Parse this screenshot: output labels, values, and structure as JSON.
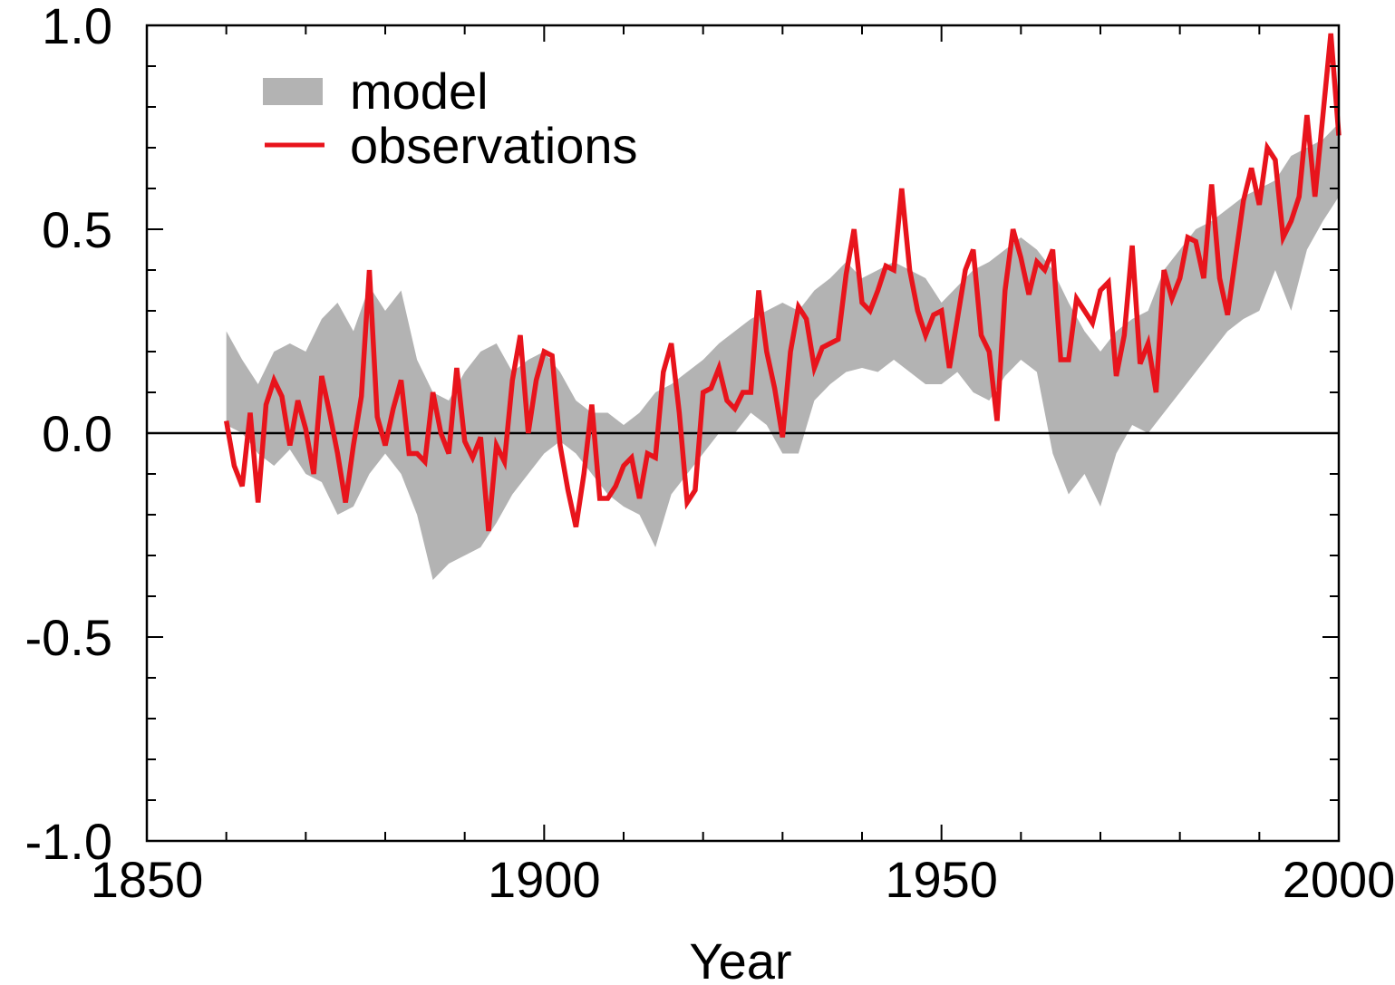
{
  "chart_data": {
    "type": "line",
    "title": "",
    "xlabel": "Year",
    "ylabel": "",
    "xlim": [
      1850,
      2000
    ],
    "ylim": [
      -1.0,
      1.0
    ],
    "x_ticks": [
      1850,
      1900,
      1950,
      2000
    ],
    "x_tick_labels": [
      "1850",
      "1900",
      "1950",
      "2000"
    ],
    "y_ticks": [
      -1.0,
      -0.5,
      0.0,
      0.5,
      1.0
    ],
    "y_tick_labels": [
      "-1.0",
      "-0.5",
      "0.0",
      "0.5",
      "1.0"
    ],
    "zero_line": true,
    "grid": false,
    "legend_position": "top-left",
    "legend": [
      "model",
      "observations"
    ],
    "colors": {
      "model": "#b3b3b3",
      "observations": "#e8141c",
      "axes": "#000000"
    },
    "series": [
      {
        "name": "model",
        "kind": "band",
        "x": [
          1860,
          1862,
          1864,
          1866,
          1868,
          1870,
          1872,
          1874,
          1876,
          1878,
          1880,
          1882,
          1884,
          1886,
          1888,
          1890,
          1892,
          1894,
          1896,
          1898,
          1900,
          1902,
          1904,
          1906,
          1908,
          1910,
          1912,
          1914,
          1916,
          1918,
          1920,
          1922,
          1924,
          1926,
          1928,
          1930,
          1932,
          1934,
          1936,
          1938,
          1940,
          1942,
          1944,
          1946,
          1948,
          1950,
          1952,
          1954,
          1956,
          1958,
          1960,
          1962,
          1964,
          1966,
          1968,
          1970,
          1972,
          1974,
          1976,
          1978,
          1980,
          1982,
          1984,
          1986,
          1988,
          1990,
          1992,
          1994,
          1996,
          1998,
          2000
        ],
        "lower": [
          0.02,
          0.0,
          -0.05,
          -0.08,
          -0.04,
          -0.1,
          -0.12,
          -0.2,
          -0.18,
          -0.1,
          -0.05,
          -0.1,
          -0.2,
          -0.36,
          -0.32,
          -0.3,
          -0.28,
          -0.22,
          -0.15,
          -0.1,
          -0.05,
          -0.02,
          -0.05,
          -0.1,
          -0.15,
          -0.18,
          -0.2,
          -0.28,
          -0.15,
          -0.1,
          -0.05,
          0.0,
          0.0,
          0.05,
          0.02,
          -0.05,
          -0.05,
          0.08,
          0.12,
          0.15,
          0.16,
          0.15,
          0.18,
          0.15,
          0.12,
          0.12,
          0.15,
          0.1,
          0.08,
          0.14,
          0.18,
          0.15,
          -0.05,
          -0.15,
          -0.1,
          -0.18,
          -0.05,
          0.02,
          0.0,
          0.05,
          0.1,
          0.15,
          0.2,
          0.25,
          0.28,
          0.3,
          0.4,
          0.3,
          0.45,
          0.52,
          0.58
        ],
        "upper": [
          0.25,
          0.18,
          0.12,
          0.2,
          0.22,
          0.2,
          0.28,
          0.32,
          0.25,
          0.36,
          0.3,
          0.35,
          0.18,
          0.1,
          0.08,
          0.15,
          0.2,
          0.22,
          0.15,
          0.18,
          0.2,
          0.15,
          0.08,
          0.05,
          0.05,
          0.02,
          0.05,
          0.1,
          0.12,
          0.15,
          0.18,
          0.22,
          0.25,
          0.28,
          0.3,
          0.32,
          0.3,
          0.35,
          0.38,
          0.42,
          0.38,
          0.4,
          0.42,
          0.4,
          0.38,
          0.32,
          0.36,
          0.4,
          0.42,
          0.45,
          0.48,
          0.45,
          0.4,
          0.32,
          0.25,
          0.2,
          0.25,
          0.28,
          0.3,
          0.4,
          0.45,
          0.5,
          0.52,
          0.55,
          0.58,
          0.6,
          0.62,
          0.68,
          0.7,
          0.72,
          0.76
        ]
      },
      {
        "name": "observations",
        "kind": "line",
        "x": [
          1860,
          1861,
          1862,
          1863,
          1864,
          1865,
          1866,
          1867,
          1868,
          1869,
          1870,
          1871,
          1872,
          1873,
          1874,
          1875,
          1876,
          1877,
          1878,
          1879,
          1880,
          1881,
          1882,
          1883,
          1884,
          1885,
          1886,
          1887,
          1888,
          1889,
          1890,
          1891,
          1892,
          1893,
          1894,
          1895,
          1896,
          1897,
          1898,
          1899,
          1900,
          1901,
          1902,
          1903,
          1904,
          1905,
          1906,
          1907,
          1908,
          1909,
          1910,
          1911,
          1912,
          1913,
          1914,
          1915,
          1916,
          1917,
          1918,
          1919,
          1920,
          1921,
          1922,
          1923,
          1924,
          1925,
          1926,
          1927,
          1928,
          1929,
          1930,
          1931,
          1932,
          1933,
          1934,
          1935,
          1936,
          1937,
          1938,
          1939,
          1940,
          1941,
          1942,
          1943,
          1944,
          1945,
          1946,
          1947,
          1948,
          1949,
          1950,
          1951,
          1952,
          1953,
          1954,
          1955,
          1956,
          1957,
          1958,
          1959,
          1960,
          1961,
          1962,
          1963,
          1964,
          1965,
          1966,
          1967,
          1968,
          1969,
          1970,
          1971,
          1972,
          1973,
          1974,
          1975,
          1976,
          1977,
          1978,
          1979,
          1980,
          1981,
          1982,
          1983,
          1984,
          1985,
          1986,
          1987,
          1988,
          1989,
          1990,
          1991,
          1992,
          1993,
          1994,
          1995,
          1996,
          1997,
          1998,
          1999,
          2000
        ],
        "y": [
          0.03,
          -0.08,
          -0.13,
          0.05,
          -0.17,
          0.07,
          0.13,
          0.09,
          -0.03,
          0.08,
          0.01,
          -0.1,
          0.14,
          0.05,
          -0.05,
          -0.17,
          -0.03,
          0.09,
          0.4,
          0.04,
          -0.03,
          0.06,
          0.13,
          -0.05,
          -0.05,
          -0.07,
          0.1,
          0.0,
          -0.05,
          0.16,
          -0.02,
          -0.06,
          -0.01,
          -0.24,
          -0.03,
          -0.07,
          0.13,
          0.24,
          0.0,
          0.13,
          0.2,
          0.19,
          -0.03,
          -0.14,
          -0.23,
          -0.1,
          0.07,
          -0.16,
          -0.16,
          -0.13,
          -0.08,
          -0.06,
          -0.16,
          -0.05,
          -0.06,
          0.15,
          0.22,
          0.05,
          -0.17,
          -0.14,
          0.1,
          0.11,
          0.16,
          0.08,
          0.06,
          0.1,
          0.1,
          0.35,
          0.2,
          0.11,
          -0.01,
          0.2,
          0.31,
          0.28,
          0.16,
          0.21,
          0.22,
          0.23,
          0.39,
          0.5,
          0.32,
          0.3,
          0.35,
          0.41,
          0.4,
          0.6,
          0.4,
          0.3,
          0.24,
          0.29,
          0.3,
          0.16,
          0.28,
          0.4,
          0.45,
          0.24,
          0.2,
          0.03,
          0.35,
          0.5,
          0.43,
          0.34,
          0.42,
          0.4,
          0.45,
          0.18,
          0.18,
          0.33,
          0.3,
          0.27,
          0.35,
          0.37,
          0.14,
          0.24,
          0.46,
          0.17,
          0.22,
          0.1,
          0.4,
          0.33,
          0.38,
          0.48,
          0.47,
          0.38,
          0.61,
          0.38,
          0.29,
          0.43,
          0.57,
          0.65,
          0.56,
          0.7,
          0.67,
          0.48,
          0.52,
          0.58,
          0.78,
          0.58,
          0.78,
          0.98,
          0.73
        ]
      }
    ]
  }
}
